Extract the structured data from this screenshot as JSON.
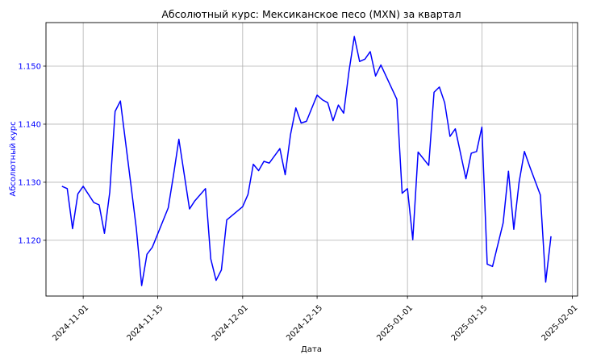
{
  "chart_data": {
    "type": "line",
    "title": "Абсолютный курс: Мексиканское песо (MXN) за квартал",
    "xlabel": "Дата",
    "ylabel": "Абсолютный курс",
    "x_ticks": [
      "2024-11-01",
      "2024-11-15",
      "2024-12-01",
      "2024-12-15",
      "2025-01-01",
      "2025-01-15",
      "2025-02-01"
    ],
    "y_ticks": [
      "1.120",
      "1.130",
      "1.140",
      "1.150"
    ],
    "xlim": [
      "2024-10-25",
      "2025-02-02"
    ],
    "ylim": [
      1.1104,
      1.1575
    ],
    "grid": true,
    "colors": {
      "line": "#0000ff",
      "ylabel": "#0000ff",
      "grid": "#b0b0b0",
      "axes": "#000000"
    },
    "series": [
      {
        "x": [
          "2024-10-28",
          "2024-10-29",
          "2024-10-30",
          "2024-10-31",
          "2024-11-01",
          "2024-11-03",
          "2024-11-04",
          "2024-11-05",
          "2024-11-06",
          "2024-11-07",
          "2024-11-08",
          "2024-11-10",
          "2024-11-11",
          "2024-11-12",
          "2024-11-13",
          "2024-11-14",
          "2024-11-17",
          "2024-11-18",
          "2024-11-19",
          "2024-11-21",
          "2024-11-22",
          "2024-11-24",
          "2024-11-25",
          "2024-11-26",
          "2024-11-27",
          "2024-11-28",
          "2024-12-01",
          "2024-12-02",
          "2024-12-03",
          "2024-12-04",
          "2024-12-05",
          "2024-12-06",
          "2024-12-08",
          "2024-12-09",
          "2024-12-10",
          "2024-12-11",
          "2024-12-12",
          "2024-12-13",
          "2024-12-15",
          "2024-12-16",
          "2024-12-17",
          "2024-12-18",
          "2024-12-19",
          "2024-12-20",
          "2024-12-21",
          "2024-12-22",
          "2024-12-23",
          "2024-12-24",
          "2024-12-25",
          "2024-12-26",
          "2024-12-27",
          "2024-12-30",
          "2024-12-31",
          "2025-01-01",
          "2025-01-02",
          "2025-01-03",
          "2025-01-05",
          "2025-01-06",
          "2025-01-07",
          "2025-01-08",
          "2025-01-09",
          "2025-01-10",
          "2025-01-12",
          "2025-01-13",
          "2025-01-14",
          "2025-01-15",
          "2025-01-16",
          "2025-01-17",
          "2025-01-19",
          "2025-01-20",
          "2025-01-21",
          "2025-01-22",
          "2025-01-23",
          "2025-01-24",
          "2025-01-26",
          "2025-01-27",
          "2025-01-28"
        ],
        "y": [
          1.1293,
          1.1289,
          1.122,
          1.128,
          1.1293,
          1.1265,
          1.1261,
          1.1212,
          1.1283,
          1.1422,
          1.144,
          1.1294,
          1.122,
          1.1122,
          1.1176,
          1.1188,
          1.1256,
          1.1313,
          1.1374,
          1.1254,
          1.1268,
          1.1289,
          1.1168,
          1.1131,
          1.1149,
          1.1235,
          1.1258,
          1.1279,
          1.1331,
          1.132,
          1.1336,
          1.1333,
          1.1358,
          1.1313,
          1.1382,
          1.1428,
          1.1402,
          1.1405,
          1.145,
          1.1442,
          1.1437,
          1.1406,
          1.1433,
          1.1419,
          1.1491,
          1.1551,
          1.1508,
          1.1512,
          1.1525,
          1.1483,
          1.1502,
          1.1443,
          1.1281,
          1.1289,
          1.1201,
          1.1352,
          1.1329,
          1.1455,
          1.1464,
          1.1437,
          1.1379,
          1.1392,
          1.1306,
          1.135,
          1.1353,
          1.1395,
          1.1159,
          1.1155,
          1.123,
          1.1319,
          1.1219,
          1.13,
          1.1353,
          1.1327,
          1.1278,
          1.1128,
          1.1207
        ]
      }
    ]
  }
}
